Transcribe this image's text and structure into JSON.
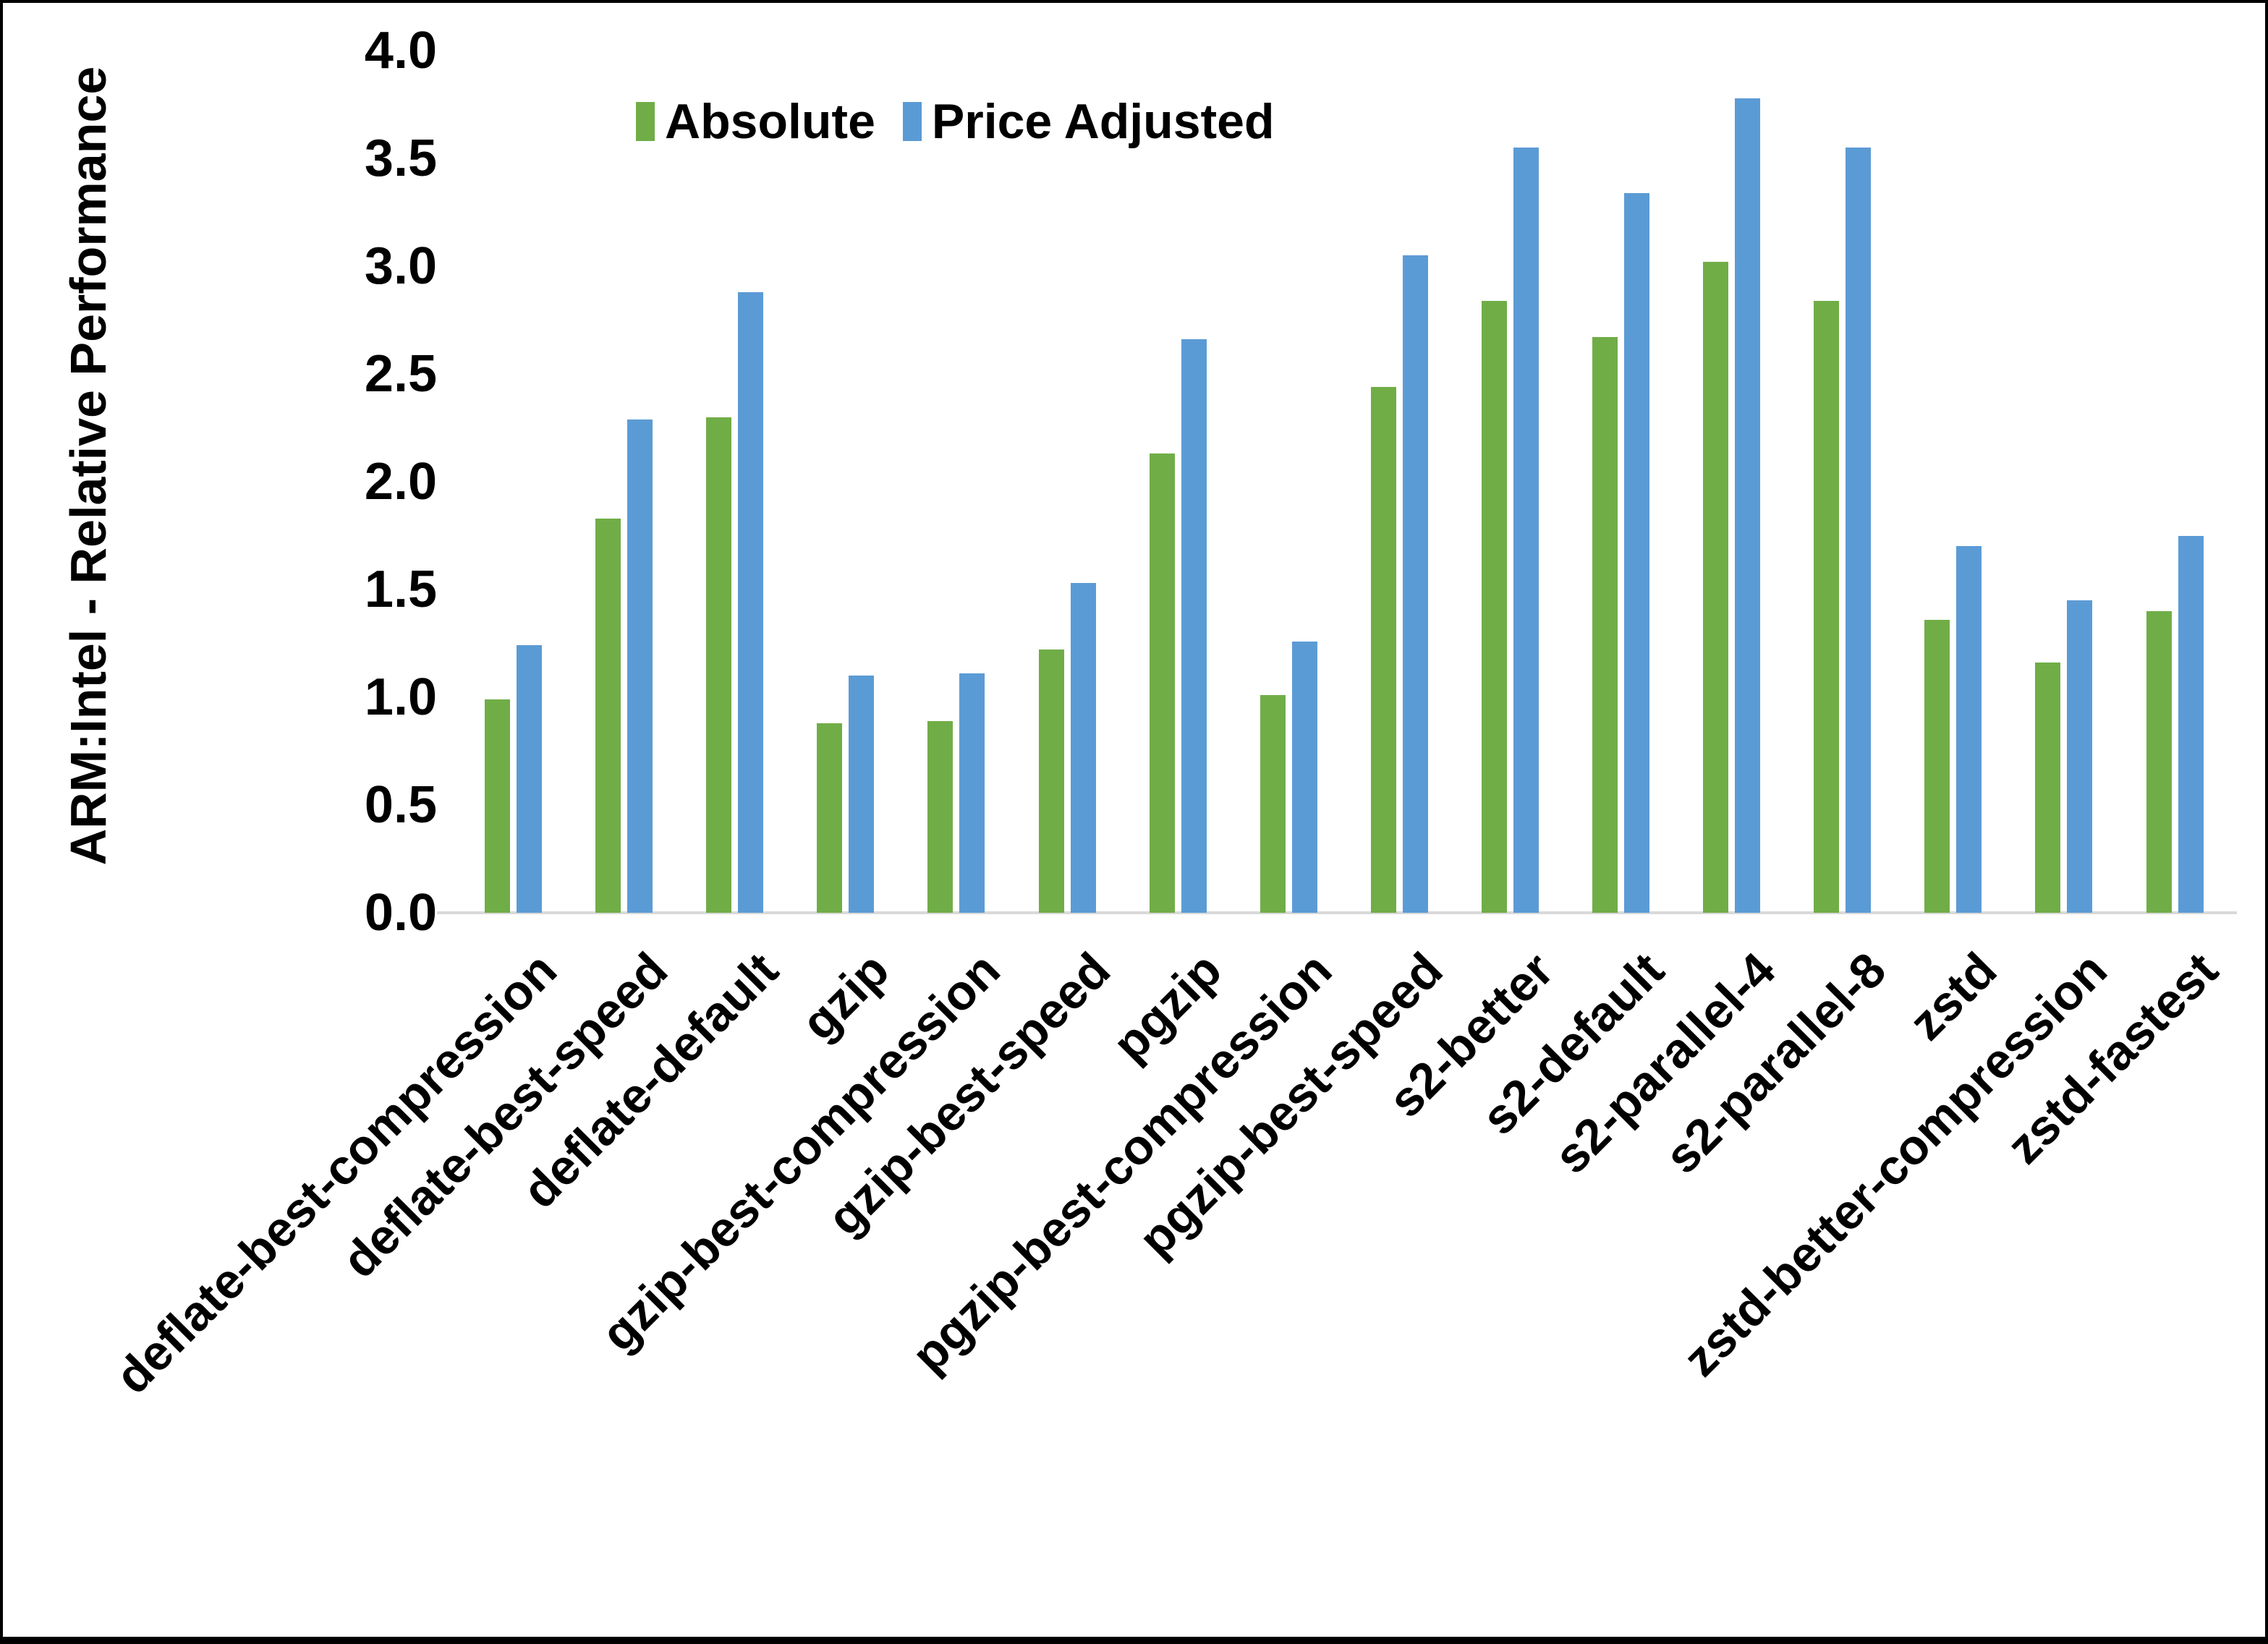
{
  "chart_data": {
    "type": "bar",
    "title": "",
    "ylabel": "ARM:Intel - Relative Performance",
    "xlabel": "",
    "ylim": [
      0.0,
      4.0
    ],
    "ytick_step": 0.5,
    "ytick_decimals": 1,
    "grid": false,
    "legend_position": "top",
    "axis_line_color": "#d9d9d9",
    "background_color": "#ffffff",
    "categories": [
      "deflate-best-compression",
      "deflate-best-speed",
      "deflate-default",
      "gzip",
      "gzip-best-compression",
      "gzip-best-speed",
      "pgzip",
      "pgzip-best-compression",
      "pgzip-best-speed",
      "s2-better",
      "s2-default",
      "s2-parallel-4",
      "s2-parallel-8",
      "zstd",
      "zstd-better-compression",
      "zstd-fastest"
    ],
    "series": [
      {
        "name": "Absolute",
        "color": "#70AD47",
        "values": [
          0.99,
          1.83,
          2.3,
          0.88,
          0.89,
          1.22,
          2.13,
          1.01,
          2.44,
          2.84,
          2.67,
          3.02,
          2.84,
          1.36,
          1.16,
          1.4
        ]
      },
      {
        "name": "Price Adjusted",
        "color": "#5B9BD5",
        "values": [
          1.24,
          2.29,
          2.88,
          1.1,
          1.11,
          1.53,
          2.66,
          1.26,
          3.05,
          3.55,
          3.34,
          3.78,
          3.55,
          1.7,
          1.45,
          1.75
        ]
      }
    ]
  }
}
